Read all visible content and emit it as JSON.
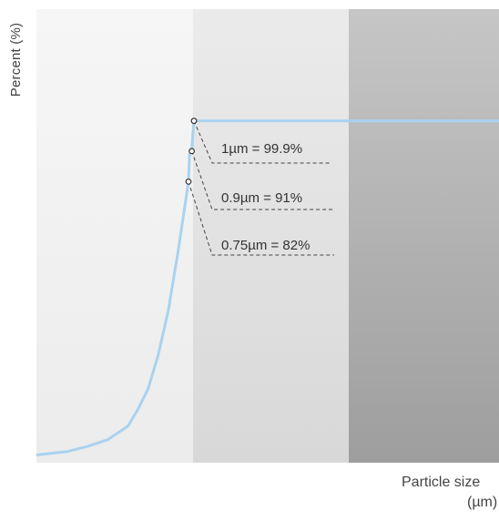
{
  "chart_data": {
    "type": "line",
    "title": "",
    "ylabel": "Percent (%)",
    "xlabel": "Particle size",
    "xlabel_unit": "(µm)",
    "grid": false,
    "legend": "none",
    "line_color": "#a9d2f0",
    "series": [
      {
        "points": [
          [
            0.0,
            1.5
          ],
          [
            0.15,
            2.5
          ],
          [
            0.25,
            4
          ],
          [
            0.35,
            6
          ],
          [
            0.45,
            10
          ],
          [
            0.5,
            15
          ],
          [
            0.55,
            21
          ],
          [
            0.6,
            31
          ],
          [
            0.65,
            44
          ],
          [
            0.7,
            62
          ],
          [
            0.75,
            82
          ],
          [
            0.8,
            90
          ],
          [
            0.9,
            91
          ],
          [
            0.95,
            96
          ],
          [
            1.0,
            99.9
          ],
          [
            2.1,
            99.9
          ]
        ]
      }
    ],
    "annotations": [
      {
        "text": "1µm = 99.9%",
        "x": 1.0,
        "y": 99.9
      },
      {
        "text": "0.9µm = 91%",
        "x": 0.9,
        "y": 91
      },
      {
        "text": "0.75µm = 82%",
        "x": 0.75,
        "y": 82
      }
    ]
  }
}
